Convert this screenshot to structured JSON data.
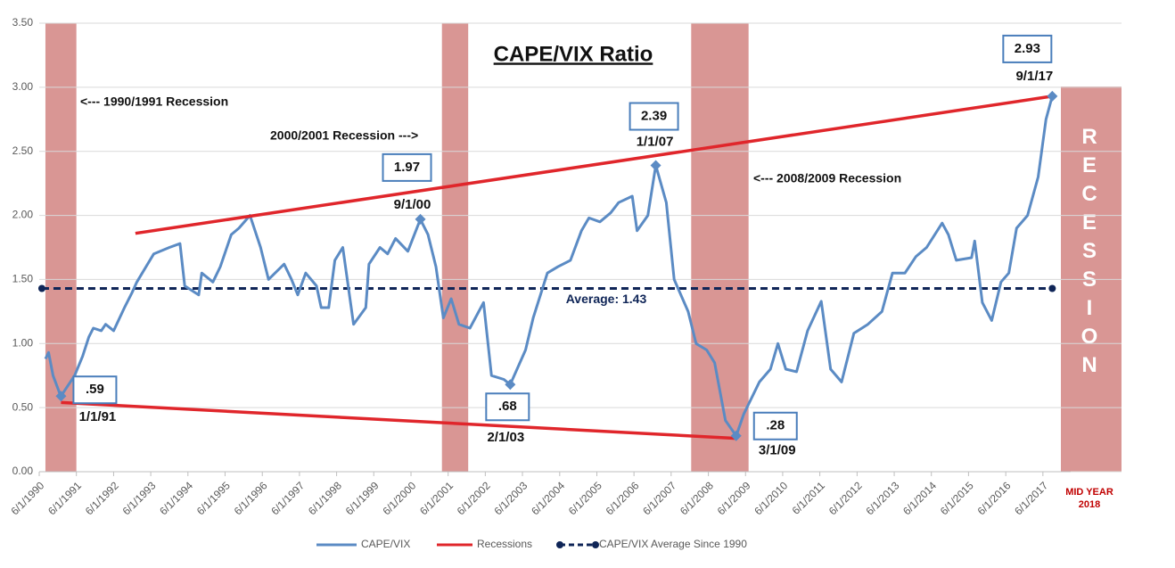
{
  "chart_data": {
    "type": "line",
    "title": "CAPE/VIX Ratio",
    "x": [
      "1990-08-01",
      "1990-09-01",
      "1990-10-15",
      "1990-12-15",
      "1991-01-01",
      "1991-05-15",
      "1991-08-01",
      "1991-10-01",
      "1991-11-15",
      "1992-02-01",
      "1992-03-15",
      "1992-06-01",
      "1992-09-15",
      "1992-12-01",
      "1993-01-15",
      "1993-04-15",
      "1993-07-01",
      "1993-12-01",
      "1994-03-15",
      "1994-05-01",
      "1994-09-15",
      "1994-10-15",
      "1995-02-01",
      "1995-04-15",
      "1995-08-01",
      "1995-10-15",
      "1996-02-01",
      "1996-05-15",
      "1996-08-01",
      "1997-01-01",
      "1997-03-15",
      "1997-05-15",
      "1997-08-01",
      "1997-11-15",
      "1998-01-01",
      "1998-03-15",
      "1998-05-15",
      "1998-08-01",
      "1998-11-15",
      "1999-03-15",
      "1999-04-15",
      "1999-08-01",
      "1999-10-15",
      "2000-01-01",
      "2000-05-01",
      "2000-09-01",
      "2000-11-15",
      "2001-02-01",
      "2001-04-15",
      "2001-07-01",
      "2001-09-15",
      "2002-01-01",
      "2002-05-15",
      "2002-08-01",
      "2002-12-01",
      "2003-02-01",
      "2003-07-01",
      "2003-09-15",
      "2004-02-01",
      "2004-05-15",
      "2004-09-15",
      "2005-01-01",
      "2005-03-15",
      "2005-07-01",
      "2005-10-15",
      "2006-01-01",
      "2006-05-15",
      "2006-07-01",
      "2006-10-15",
      "2007-01-01",
      "2007-04-15",
      "2007-07-01",
      "2007-11-15",
      "2008-02-01",
      "2008-05-15",
      "2008-08-01",
      "2008-11-15",
      "2009-03-01",
      "2009-05-15",
      "2009-10-15",
      "2010-02-01",
      "2010-04-15",
      "2010-07-01",
      "2010-10-15",
      "2011-02-01",
      "2011-06-15",
      "2011-09-15",
      "2012-01-01",
      "2012-05-01",
      "2012-09-15",
      "2013-02-01",
      "2013-05-15",
      "2013-09-15",
      "2014-01-01",
      "2014-04-15",
      "2014-09-15",
      "2014-11-15",
      "2015-02-01",
      "2015-07-01",
      "2015-08-01",
      "2015-10-15",
      "2016-01-15",
      "2016-04-15",
      "2016-07-01",
      "2016-09-15",
      "2017-01-01",
      "2017-04-15",
      "2017-07-01",
      "2017-09-01"
    ],
    "series": [
      {
        "name": "CAPE/VIX",
        "color": "#5b8bc4",
        "values": [
          0.88,
          0.93,
          0.75,
          0.62,
          0.59,
          0.75,
          0.9,
          1.05,
          1.12,
          1.1,
          1.15,
          1.1,
          1.28,
          1.4,
          1.48,
          1.6,
          1.7,
          1.75,
          1.78,
          1.45,
          1.38,
          1.55,
          1.48,
          1.6,
          1.85,
          1.9,
          2.0,
          1.75,
          1.5,
          1.62,
          1.5,
          1.38,
          1.55,
          1.45,
          1.28,
          1.28,
          1.65,
          1.75,
          1.15,
          1.28,
          1.62,
          1.75,
          1.7,
          1.82,
          1.72,
          1.97,
          1.85,
          1.6,
          1.2,
          1.35,
          1.15,
          1.12,
          1.32,
          0.75,
          0.72,
          0.68,
          0.95,
          1.2,
          1.55,
          1.6,
          1.65,
          1.88,
          1.98,
          1.95,
          2.02,
          2.1,
          2.15,
          1.88,
          2.0,
          2.39,
          2.1,
          1.5,
          1.25,
          1.0,
          0.95,
          0.85,
          0.4,
          0.28,
          0.45,
          0.7,
          0.8,
          1.0,
          0.8,
          0.78,
          1.1,
          1.33,
          0.8,
          0.7,
          1.08,
          1.15,
          1.25,
          1.55,
          1.55,
          1.68,
          1.75,
          1.94,
          1.85,
          1.65,
          1.67,
          1.8,
          1.32,
          1.18,
          1.48,
          1.55,
          1.9,
          2.0,
          2.3,
          2.75,
          2.93
        ]
      }
    ],
    "recessions": {
      "name": "Recessions",
      "color": "#d99694",
      "periods": [
        {
          "start": "1990-08-01",
          "end": "1991-06-01"
        },
        {
          "start": "2001-04-01",
          "end": "2001-12-15"
        },
        {
          "start": "2007-12-15",
          "end": "2009-07-01"
        }
      ]
    },
    "average": {
      "name": "CAPE/VIX Average Since 1990",
      "color": "#0f2557",
      "value": 1.43,
      "label": "Average: 1.43"
    },
    "trend_lines": [
      {
        "color": "#e0262b",
        "x": [
          "1993-01-01",
          "2017-09-01"
        ],
        "values": [
          1.86,
          2.93
        ]
      },
      {
        "color": "#e0262b",
        "x": [
          "1991-01-01",
          "2009-03-01"
        ],
        "values": [
          0.54,
          0.26
        ]
      }
    ],
    "callouts": [
      {
        "x": "1991-01-01",
        "value": 0.59,
        "value_label": ".59",
        "date_label": "1/1/91"
      },
      {
        "x": "2000-09-01",
        "value": 1.97,
        "value_label": "1.97",
        "date_label": "9/1/00"
      },
      {
        "x": "2003-02-01",
        "value": 0.68,
        "value_label": ".68",
        "date_label": "2/1/03"
      },
      {
        "x": "2007-01-01",
        "value": 2.39,
        "value_label": "2.39",
        "date_label": "1/1/07"
      },
      {
        "x": "2009-03-01",
        "value": 0.28,
        "value_label": ".28",
        "date_label": "3/1/09"
      },
      {
        "x": "2017-09-01",
        "value": 2.93,
        "value_label": "2.93",
        "date_label": "9/1/17"
      }
    ],
    "annotations": [
      "<--- 1990/1991 Recession",
      "2000/2001 Recession --->",
      "<--- 2008/2009 Recession"
    ],
    "side_box": {
      "text": "RECESSION",
      "label": [
        "MID YEAR",
        "2018"
      ]
    },
    "xlim": [
      "1990-06-01",
      "2018-03-01"
    ],
    "xticks": [
      {
        "value": "1990-06-01",
        "label": "6/1/1990"
      },
      {
        "value": "1991-06-01",
        "label": "6/1/1991"
      },
      {
        "value": "1992-06-01",
        "label": "6/1/1992"
      },
      {
        "value": "1993-06-01",
        "label": "6/1/1993"
      },
      {
        "value": "1994-06-01",
        "label": "6/1/1994"
      },
      {
        "value": "1995-06-01",
        "label": "6/1/1995"
      },
      {
        "value": "1996-06-01",
        "label": "6/1/1996"
      },
      {
        "value": "1997-06-01",
        "label": "6/1/1997"
      },
      {
        "value": "1998-06-01",
        "label": "6/1/1998"
      },
      {
        "value": "1999-06-01",
        "label": "6/1/1999"
      },
      {
        "value": "2000-06-01",
        "label": "6/1/2000"
      },
      {
        "value": "2001-06-01",
        "label": "6/1/2001"
      },
      {
        "value": "2002-06-01",
        "label": "6/1/2002"
      },
      {
        "value": "2003-06-01",
        "label": "6/1/2003"
      },
      {
        "value": "2004-06-01",
        "label": "6/1/2004"
      },
      {
        "value": "2005-06-01",
        "label": "6/1/2005"
      },
      {
        "value": "2006-06-01",
        "label": "6/1/2006"
      },
      {
        "value": "2007-06-01",
        "label": "6/1/2007"
      },
      {
        "value": "2008-06-01",
        "label": "6/1/2008"
      },
      {
        "value": "2009-06-01",
        "label": "6/1/2009"
      },
      {
        "value": "2010-06-01",
        "label": "6/1/2010"
      },
      {
        "value": "2011-06-01",
        "label": "6/1/2011"
      },
      {
        "value": "2012-06-01",
        "label": "6/1/2012"
      },
      {
        "value": "2013-06-01",
        "label": "6/1/2013"
      },
      {
        "value": "2014-06-01",
        "label": "6/1/2014"
      },
      {
        "value": "2015-06-01",
        "label": "6/1/2015"
      },
      {
        "value": "2016-06-01",
        "label": "6/1/2016"
      },
      {
        "value": "2017-06-01",
        "label": "6/1/2017"
      }
    ],
    "ylim": [
      0,
      3.5
    ],
    "yticks": [
      {
        "value": 0,
        "label": "0.00"
      },
      {
        "value": 0.5,
        "label": "0.50"
      },
      {
        "value": 1,
        "label": "1.00"
      },
      {
        "value": 1.5,
        "label": "1.50"
      },
      {
        "value": 2,
        "label": "2.00"
      },
      {
        "value": 2.5,
        "label": "2.50"
      },
      {
        "value": 3,
        "label": "3.00"
      },
      {
        "value": 3.5,
        "label": "3.50"
      }
    ],
    "grid": true
  }
}
